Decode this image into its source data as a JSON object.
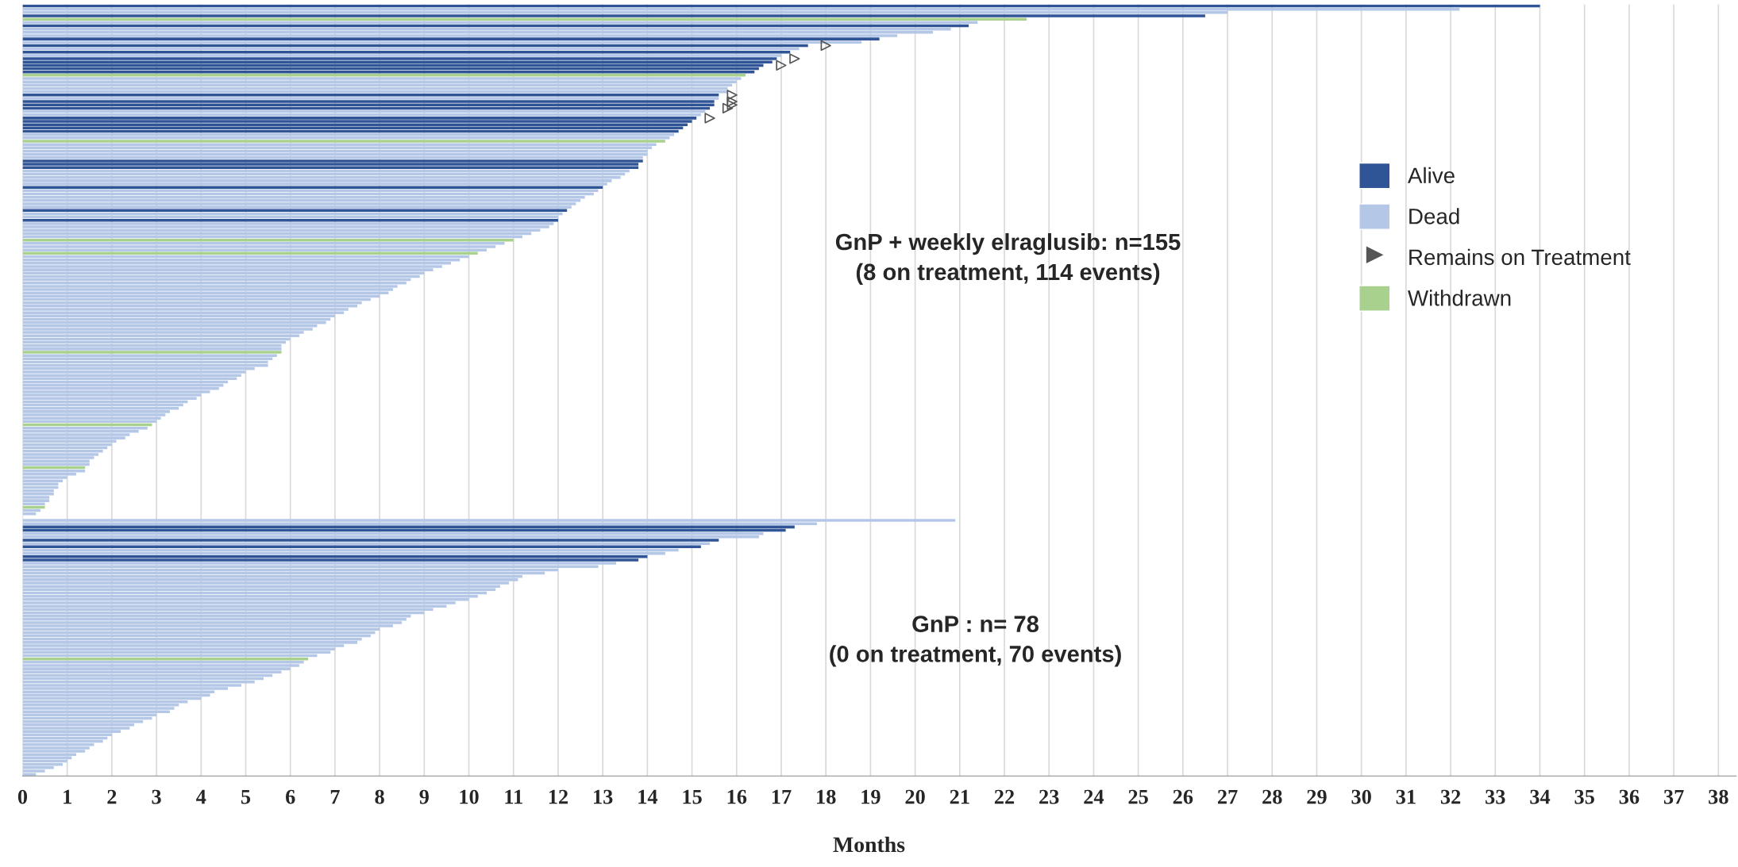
{
  "chart_data": {
    "type": "bar",
    "orientation": "horizontal",
    "xlabel": "Months",
    "xlim": [
      0,
      38.4
    ],
    "xticks": [
      0,
      1,
      2,
      3,
      4,
      5,
      6,
      7,
      8,
      9,
      10,
      11,
      12,
      13,
      14,
      15,
      16,
      17,
      18,
      19,
      20,
      21,
      22,
      23,
      24,
      25,
      26,
      27,
      28,
      29,
      30,
      31,
      32,
      33,
      34,
      35,
      36,
      37,
      38
    ],
    "grid": "x",
    "legend": "top right",
    "annotations": [
      "GnP + weekly elraglusib: n=155\n(8 on treatment, 114 events)",
      "GnP : n= 78\n(0 on treatment, 70 events)"
    ],
    "categories": [
      null,
      null,
      null,
      null,
      null,
      null,
      null,
      null,
      null,
      null,
      null,
      null,
      null,
      null,
      null,
      null,
      null,
      null,
      null,
      null,
      null,
      null,
      null,
      null,
      null,
      null,
      null,
      null,
      null,
      null,
      null,
      null,
      null,
      null,
      null,
      null,
      null,
      null,
      null,
      null,
      null,
      null,
      null,
      null,
      null,
      null,
      null,
      null,
      null,
      null,
      null,
      null,
      null,
      null,
      null,
      null,
      null,
      null,
      null,
      null,
      null,
      null,
      null,
      null,
      null,
      null,
      null,
      null,
      null,
      null,
      null,
      null,
      null,
      null,
      null,
      null,
      null,
      null,
      null,
      null,
      null,
      null,
      null,
      null,
      null,
      null,
      null,
      null,
      null,
      null,
      null,
      null,
      null,
      null,
      null,
      null,
      null,
      null,
      null,
      null,
      null,
      null,
      null,
      null,
      null,
      null,
      null,
      null,
      null,
      null,
      null,
      null,
      null,
      null,
      null,
      null,
      null,
      null,
      null,
      null,
      null,
      null,
      null,
      null,
      null,
      null,
      null,
      null,
      null,
      null,
      null,
      null,
      null,
      null,
      null,
      null,
      null,
      null,
      null,
      null,
      null,
      null,
      null,
      null,
      null,
      null,
      null,
      null,
      null,
      null,
      null,
      null,
      null,
      null,
      null,
      null,
      null,
      null,
      null,
      null,
      null,
      null,
      null,
      null,
      null,
      null,
      null,
      null,
      null,
      null,
      null,
      null,
      null,
      null,
      null,
      null,
      null,
      null,
      null,
      null,
      null,
      null,
      null,
      null,
      null,
      null,
      null,
      null,
      null,
      null,
      null,
      null,
      null,
      null,
      null,
      null,
      null,
      null,
      null,
      null,
      null,
      null,
      null,
      null,
      null,
      null,
      null,
      null,
      null,
      null,
      null,
      null,
      null,
      null,
      null,
      null,
      null,
      null,
      null,
      null,
      null,
      null,
      null,
      null,
      null,
      null,
      null,
      null,
      null,
      null,
      null,
      null,
      null,
      null
    ],
    "series": [
      {
        "name": "Alive",
        "color": "#2f5597",
        "values": [
          34.0,
          null,
          null,
          26.5,
          null,
          null,
          21.2,
          null,
          null,
          null,
          19.2,
          null,
          17.6,
          null,
          17.2,
          null,
          16.9,
          16.8,
          16.6,
          16.5,
          16.4,
          null,
          null,
          null,
          null,
          null,
          null,
          15.6,
          null,
          15.5,
          15.5,
          15.4,
          null,
          null,
          15.1,
          15.0,
          14.9,
          14.8,
          14.7,
          null,
          null,
          null,
          null,
          null,
          null,
          null,
          null,
          13.9,
          13.8,
          13.8,
          null,
          null,
          null,
          null,
          null,
          13.0,
          null,
          null,
          null,
          null,
          null,
          null,
          12.2,
          null,
          null,
          12.0,
          null,
          null,
          null,
          null,
          null,
          null,
          null,
          null,
          null,
          null,
          null,
          null,
          null,
          null,
          null,
          null,
          null,
          null,
          null,
          null,
          null,
          null,
          null,
          null,
          null,
          null,
          null,
          null,
          null,
          null,
          null,
          null,
          null,
          null,
          null,
          null,
          null,
          null,
          null,
          null,
          null,
          null,
          null,
          null,
          null,
          null,
          null,
          null,
          null,
          null,
          null,
          null,
          null,
          null,
          null,
          null,
          null,
          null,
          null,
          null,
          null,
          null,
          null,
          null,
          null,
          null,
          null,
          null,
          null,
          null,
          null,
          null,
          null,
          null,
          null,
          null,
          null,
          null,
          null,
          null,
          null,
          null,
          null,
          null,
          null,
          null,
          null,
          null,
          null,
          null,
          null,
          null,
          17.3,
          17.1,
          null,
          null,
          15.6,
          null,
          15.2,
          null,
          null,
          14.0,
          13.8,
          null,
          null,
          null,
          null,
          null,
          null,
          null,
          null,
          null,
          null,
          null,
          null,
          null,
          null,
          null,
          null,
          null,
          null,
          null,
          null,
          null,
          null,
          null,
          null,
          null,
          null,
          null,
          null,
          null,
          null,
          null,
          null,
          null,
          null,
          null,
          null,
          null,
          null,
          null,
          null,
          null,
          null,
          null,
          null,
          null,
          null,
          null,
          null,
          null,
          null,
          null,
          null,
          null,
          null,
          null,
          null,
          null,
          null,
          null,
          null,
          null,
          null,
          null,
          null,
          null
        ]
      },
      {
        "name": "Dead",
        "color": "#b4c7e7",
        "values": [
          null,
          32.2,
          27.0,
          null,
          null,
          21.4,
          null,
          20.8,
          20.4,
          19.6,
          null,
          18.8,
          null,
          17.4,
          null,
          17.0,
          null,
          null,
          null,
          null,
          null,
          null,
          16.1,
          16.0,
          15.9,
          15.8,
          15.8,
          null,
          15.6,
          null,
          null,
          null,
          15.3,
          15.2,
          null,
          null,
          null,
          null,
          null,
          14.6,
          14.5,
          null,
          14.2,
          14.1,
          14.0,
          14.0,
          13.9,
          null,
          null,
          null,
          13.6,
          13.5,
          13.4,
          13.2,
          13.1,
          null,
          12.9,
          12.8,
          12.6,
          12.5,
          12.4,
          12.3,
          null,
          12.1,
          12.0,
          null,
          11.9,
          11.8,
          11.6,
          11.4,
          11.2,
          null,
          10.8,
          10.6,
          10.4,
          null,
          10.0,
          9.8,
          9.6,
          9.4,
          9.2,
          9.0,
          8.9,
          8.7,
          8.6,
          8.4,
          8.3,
          8.2,
          8.0,
          7.8,
          7.6,
          7.5,
          7.3,
          7.2,
          7.0,
          6.9,
          6.8,
          6.6,
          6.5,
          6.3,
          6.2,
          6.0,
          5.9,
          5.8,
          5.8,
          null,
          5.7,
          5.6,
          5.5,
          5.5,
          5.2,
          5.0,
          4.9,
          4.8,
          4.6,
          4.5,
          4.4,
          4.2,
          4.0,
          3.9,
          3.7,
          3.6,
          3.5,
          3.3,
          3.2,
          3.1,
          3.0,
          null,
          2.8,
          2.6,
          2.4,
          2.3,
          2.1,
          2.0,
          1.9,
          1.8,
          1.7,
          1.6,
          1.5,
          1.5,
          null,
          1.4,
          1.2,
          1.0,
          0.9,
          0.8,
          0.8,
          0.7,
          0.7,
          0.6,
          0.6,
          0.5,
          null,
          0.4,
          0.3,
          null,
          20.9,
          17.8,
          null,
          null,
          16.6,
          16.5,
          null,
          15.4,
          null,
          14.7,
          14.4,
          null,
          null,
          13.3,
          12.9,
          12.0,
          11.7,
          11.2,
          11.1,
          10.9,
          10.7,
          10.6,
          10.4,
          10.2,
          10.0,
          9.7,
          9.5,
          9.2,
          9.0,
          8.7,
          8.6,
          8.5,
          8.3,
          8.0,
          7.9,
          7.8,
          7.6,
          7.5,
          7.2,
          7.0,
          6.9,
          6.6,
          null,
          6.3,
          6.2,
          6.0,
          5.8,
          5.6,
          5.4,
          5.2,
          4.9,
          4.6,
          4.3,
          4.2,
          4.0,
          3.7,
          3.5,
          3.4,
          3.3,
          3.0,
          2.9,
          2.7,
          2.5,
          2.4,
          2.2,
          2.0,
          1.9,
          1.8,
          1.6,
          1.5,
          1.4,
          1.2,
          1.1,
          1.0,
          0.9,
          0.7,
          0.5,
          0.3
        ]
      },
      {
        "name": "Remains on Treatment",
        "type": "scatter",
        "color": "#555555",
        "marker": "triangle",
        "values": [
          null,
          null,
          null,
          null,
          null,
          null,
          null,
          null,
          null,
          null,
          null,
          null,
          18.0,
          null,
          null,
          null,
          17.3,
          null,
          17.0,
          null,
          null,
          null,
          null,
          null,
          null,
          null,
          null,
          15.9,
          null,
          15.9,
          15.9,
          15.8,
          null,
          null,
          15.4,
          null,
          null,
          null,
          null,
          null,
          null,
          null,
          null,
          null,
          null,
          null,
          null,
          null,
          null,
          null,
          null,
          null,
          null,
          null,
          null,
          null,
          null,
          null,
          null,
          null,
          null,
          null,
          null,
          null,
          null,
          null,
          null,
          null,
          null,
          null,
          null,
          null,
          null,
          null,
          null,
          null,
          null,
          null,
          null,
          null,
          null,
          null,
          null,
          null,
          null,
          null,
          null,
          null,
          null,
          null,
          null,
          null,
          null,
          null,
          null,
          null,
          null,
          null,
          null,
          null,
          null,
          null,
          null,
          null,
          null,
          null,
          null,
          null,
          null,
          null,
          null,
          null,
          null,
          null,
          null,
          null,
          null,
          null,
          null,
          null,
          null,
          null,
          null,
          null,
          null,
          null,
          null,
          null,
          null,
          null,
          null,
          null,
          null,
          null,
          null,
          null,
          null,
          null,
          null,
          null,
          null,
          null,
          null,
          null,
          null,
          null,
          null,
          null,
          null,
          null,
          null,
          null,
          null,
          null,
          null,
          null,
          null,
          null,
          null,
          null,
          null,
          null,
          null,
          null,
          null,
          null,
          null,
          null,
          null,
          null,
          null,
          null,
          null,
          null,
          null,
          null,
          null,
          null,
          null,
          null,
          null,
          null,
          null,
          null,
          null,
          null,
          null,
          null,
          null,
          null,
          null,
          null,
          null,
          null,
          null,
          null,
          null,
          null,
          null,
          null,
          null,
          null,
          null,
          null,
          null,
          null,
          null,
          null,
          null,
          null,
          null,
          null,
          null,
          null,
          null,
          null,
          null,
          null,
          null,
          null,
          null,
          null,
          null,
          null,
          null,
          null,
          null,
          null,
          null,
          null,
          null,
          null,
          null,
          null
        ]
      },
      {
        "name": "Withdrawn",
        "color": "#a9d18e",
        "values": [
          null,
          null,
          null,
          null,
          22.5,
          null,
          null,
          null,
          null,
          null,
          null,
          null,
          null,
          null,
          null,
          null,
          null,
          null,
          null,
          null,
          null,
          16.2,
          null,
          null,
          null,
          null,
          null,
          null,
          null,
          null,
          null,
          null,
          null,
          null,
          null,
          null,
          null,
          null,
          null,
          null,
          null,
          14.4,
          null,
          null,
          null,
          null,
          null,
          null,
          null,
          null,
          null,
          null,
          null,
          null,
          null,
          null,
          null,
          null,
          null,
          null,
          null,
          null,
          null,
          null,
          null,
          null,
          null,
          null,
          null,
          null,
          null,
          11.0,
          null,
          null,
          null,
          10.2,
          null,
          null,
          null,
          null,
          null,
          null,
          null,
          null,
          null,
          null,
          null,
          null,
          null,
          null,
          null,
          null,
          null,
          null,
          null,
          null,
          null,
          null,
          null,
          null,
          null,
          null,
          null,
          null,
          null,
          5.8,
          null,
          null,
          null,
          null,
          null,
          null,
          null,
          null,
          null,
          null,
          null,
          null,
          null,
          null,
          null,
          null,
          null,
          null,
          null,
          null,
          null,
          2.9,
          null,
          null,
          null,
          null,
          null,
          null,
          null,
          null,
          null,
          null,
          null,
          null,
          1.4,
          null,
          null,
          null,
          null,
          null,
          null,
          null,
          null,
          null,
          null,
          null,
          0.5,
          null,
          null,
          null,
          null,
          null,
          null,
          null,
          null,
          null,
          null,
          null,
          null,
          null,
          null,
          null,
          null,
          null,
          null,
          null,
          null,
          null,
          null,
          null,
          null,
          null,
          null,
          null,
          null,
          null,
          null,
          null,
          null,
          null,
          null,
          null,
          null,
          null,
          null,
          null,
          null,
          null,
          null,
          null,
          null,
          null,
          6.4,
          null,
          null,
          null,
          null,
          null,
          null,
          null,
          null,
          null,
          null,
          null,
          null,
          null,
          null,
          null,
          null,
          null,
          null,
          null,
          null,
          null,
          null,
          null,
          null,
          null,
          null,
          null,
          null,
          null,
          null,
          null,
          null,
          null,
          null,
          null
        ]
      }
    ]
  }
}
